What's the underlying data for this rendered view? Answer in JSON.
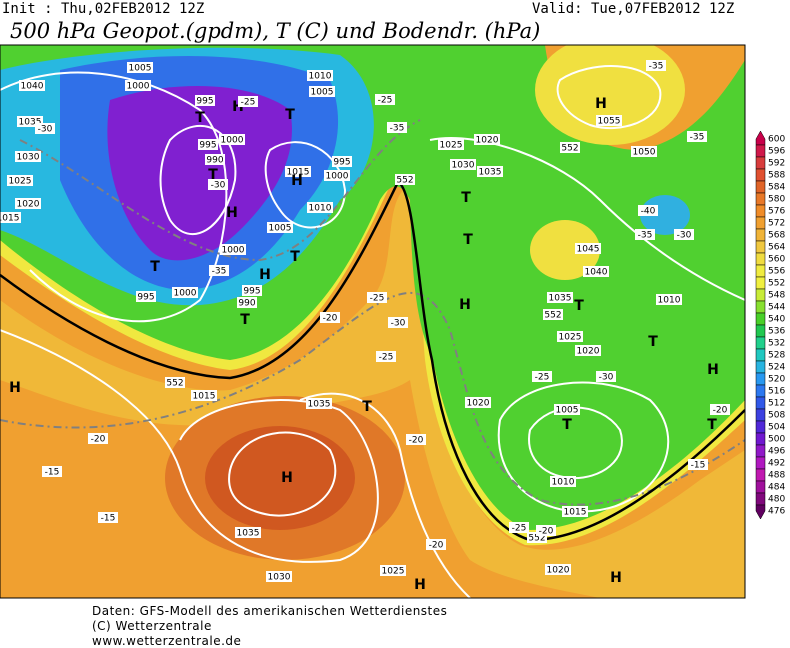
{
  "header": {
    "init": "Init : Thu,02FEB2012 12Z",
    "valid": "Valid: Tue,07FEB2012 12Z",
    "title": "500 hPa Geopot.(gpdm), T (C) und Bodendr. (hPa)"
  },
  "colorbar": {
    "levels": [
      600,
      596,
      592,
      588,
      584,
      580,
      576,
      572,
      568,
      564,
      560,
      556,
      552,
      548,
      544,
      540,
      536,
      532,
      528,
      524,
      520,
      516,
      512,
      508,
      504,
      500,
      496,
      492,
      488,
      484,
      480,
      476
    ],
    "colors": [
      "#c8004a",
      "#d0184a",
      "#d83c3c",
      "#e05030",
      "#e06428",
      "#e87828",
      "#f08c28",
      "#f0a030",
      "#f0b438",
      "#f0c840",
      "#f0dc40",
      "#f0ec40",
      "#f0f040",
      "#c8ec38",
      "#88e030",
      "#48d028",
      "#20c850",
      "#20d08c",
      "#20c8c0",
      "#28b4e0",
      "#2898f0",
      "#2c78f0",
      "#3058e8",
      "#3c40e0",
      "#5028d8",
      "#7018d0",
      "#9018c8",
      "#b018c0",
      "#c018b0",
      "#a0109c",
      "#80087c",
      "#600060"
    ]
  },
  "map_labels": [
    "1005",
    "1000",
    "995",
    "H",
    "T",
    "995",
    "990",
    "T",
    "H",
    "1010",
    "1005",
    "T",
    "1015",
    "H",
    "995",
    "1000",
    "1010",
    "1005",
    "1000",
    "T",
    "H",
    "T",
    "1000",
    "995",
    "990",
    "T",
    "1040",
    "1035",
    "1030",
    "1025",
    "1020",
    "1015",
    "995",
    "1000",
    "-30",
    "-35",
    "-25",
    "-30",
    "-25",
    "-35",
    "1025",
    "1020",
    "1030",
    "1035",
    "-35",
    "H",
    "1055",
    "1050",
    "-35",
    "1045",
    "1040",
    "T",
    "1035",
    "H",
    "1010",
    "T",
    "-40",
    "-35",
    "-30",
    "552",
    "552",
    "552",
    "552",
    "552",
    "-25",
    "-20",
    "-25",
    "-30",
    "1025",
    "1020",
    "T",
    "T",
    "1005",
    "T",
    "-30",
    "-25",
    "H",
    "1015",
    "-20",
    "-15",
    "T",
    "1035",
    "-20",
    "1020",
    "H",
    "-15",
    "1035",
    "1030",
    "H",
    "1025",
    "H",
    "-20",
    "1010",
    "1015",
    "-25",
    "-20",
    "1020",
    "H",
    "-15",
    "-20",
    "T"
  ],
  "footer": [
    "Daten: GFS-Modell des amerikanischen Wetterdienstes",
    "(C) Wetterzentrale",
    "www.wetterzentrale.de"
  ]
}
